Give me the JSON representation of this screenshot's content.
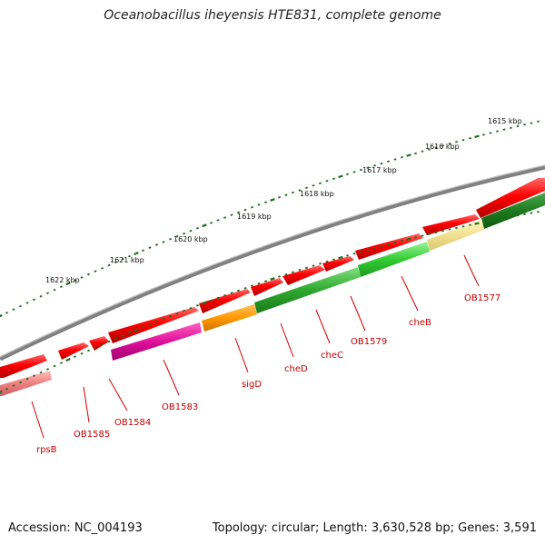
{
  "title": "Oceanobacillus iheyensis HTE831, complete genome",
  "footer": {
    "accession": "Accession: NC_004193",
    "topology": "Topology: circular; Length: 3,630,528 bp; Genes: 3,591"
  },
  "colors": {
    "backbone": "#808080",
    "forward_strand": "#ff0000",
    "tick": "#1a6e1a",
    "label": "#c00000"
  },
  "kbp_labels": [
    "1615 kbp",
    "1616 kbp",
    "1617 kbp",
    "1618 kbp",
    "1619 kbp",
    "1620 kbp",
    "1621 kbp",
    "1622 kbp"
  ],
  "genes": [
    {
      "name": "OB1577",
      "color": "#f0e090"
    },
    {
      "name": "cheB",
      "color": "#33cc33"
    },
    {
      "name": "OB1579",
      "color": "#33cc33"
    },
    {
      "name": "cheC",
      "color": "#2ea82e"
    },
    {
      "name": "cheD",
      "color": "#2ea82e"
    },
    {
      "name": "sigD",
      "color": "#ff9900"
    },
    {
      "name": "OB1583",
      "color": "#e0109a"
    },
    {
      "name": "OB1584",
      "color": "#ff0000"
    },
    {
      "name": "OB1585",
      "color": "#ff0000"
    },
    {
      "name": "rpsB",
      "color": "#f08080"
    }
  ]
}
